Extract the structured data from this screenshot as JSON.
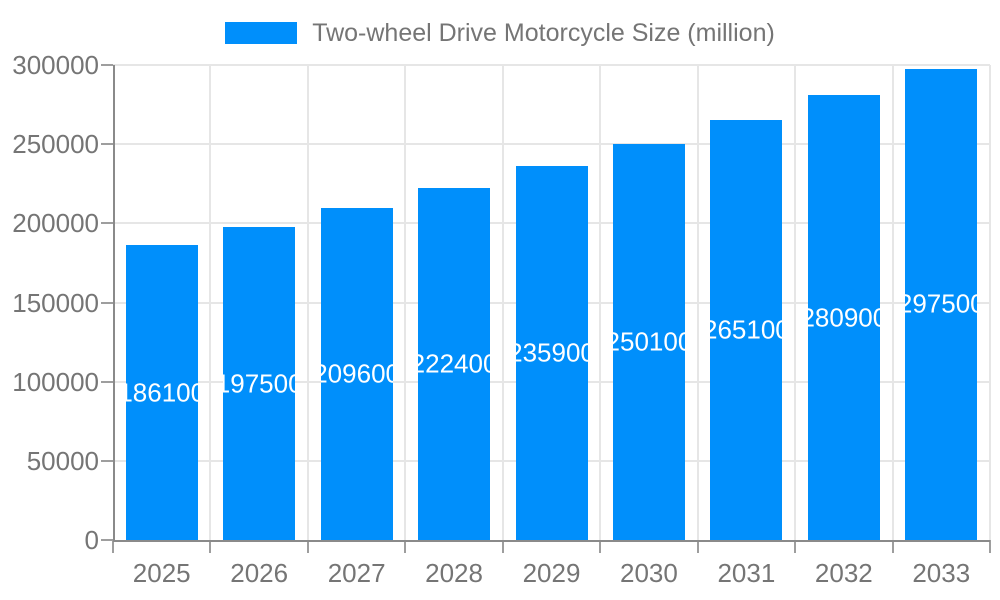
{
  "legend": {
    "label": "Two-wheel Drive Motorcycle Size (million)"
  },
  "chart_data": {
    "type": "bar",
    "title": "Two-wheel Drive Motorcycle Size (million)",
    "categories": [
      "2025",
      "2026",
      "2027",
      "2028",
      "2029",
      "2030",
      "2031",
      "2032",
      "2033"
    ],
    "values": [
      186100,
      197500,
      209600,
      222400,
      235900,
      250100,
      265100,
      280900,
      297500
    ],
    "bar_labels": [
      "186100",
      "197500",
      "209600",
      "222400",
      "235900",
      "250100",
      "265100",
      "280900",
      "297500"
    ],
    "xlabel": "",
    "ylabel": "",
    "ylim": [
      0,
      300000
    ],
    "yticks": [
      0,
      50000,
      100000,
      150000,
      200000,
      250000,
      300000
    ],
    "ytick_labels": [
      "0",
      "50000",
      "100000",
      "150000",
      "200000",
      "250000",
      "300000"
    ],
    "grid": true,
    "legend_position": "top"
  },
  "colors": {
    "bar": "#008FFB",
    "bar_label_text": "#ffffff",
    "axis_text": "#757575",
    "legend_text": "#757575",
    "gridline": "#e6e6e6",
    "axis_line": "#8a8a8a",
    "tick": "#9e9e9e",
    "background": "#ffffff"
  }
}
